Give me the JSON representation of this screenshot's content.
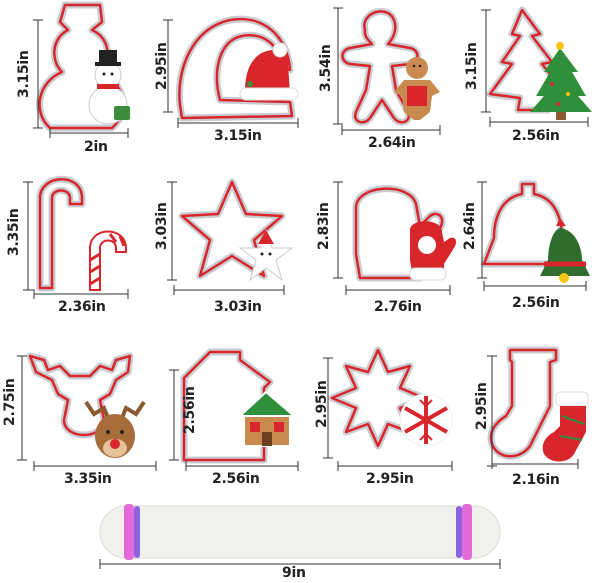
{
  "cutters": [
    {
      "id": "snowman",
      "height": "3.15in",
      "width": "2in",
      "icon": "snowman-cookie-icon"
    },
    {
      "id": "santa-hat",
      "height": "2.95in",
      "width": "3.15in",
      "icon": "santa-hat-cookie-icon"
    },
    {
      "id": "gingerbread-man",
      "height": "3.54in",
      "width": "2.64in",
      "icon": "gingerbread-man-cookie-icon"
    },
    {
      "id": "christmas-tree",
      "height": "3.15in",
      "width": "2.56in",
      "icon": "christmas-tree-cookie-icon"
    },
    {
      "id": "candy-cane",
      "height": "3.35in",
      "width": "2.36in",
      "icon": "candy-cane-cookie-icon"
    },
    {
      "id": "star",
      "height": "3.03in",
      "width": "3.03in",
      "icon": "star-cookie-icon"
    },
    {
      "id": "mitten",
      "height": "2.83in",
      "width": "2.76in",
      "icon": "mitten-cookie-icon"
    },
    {
      "id": "bell",
      "height": "2.64in",
      "width": "2.56in",
      "icon": "bell-cookie-icon"
    },
    {
      "id": "reindeer",
      "height": "2.75in",
      "width": "3.35in",
      "icon": "reindeer-cookie-icon"
    },
    {
      "id": "house",
      "height": "2.56in",
      "width": "2.56in",
      "icon": "gingerbread-house-cookie-icon"
    },
    {
      "id": "snowflake",
      "height": "2.95in",
      "width": "2.95in",
      "icon": "snowflake-cookie-icon"
    },
    {
      "id": "stocking",
      "height": "2.95in",
      "width": "2.16in",
      "icon": "stocking-cookie-icon"
    }
  ],
  "rolling_pin": {
    "length": "9in",
    "icon": "rolling-pin-icon"
  },
  "colors": {
    "cutter_red": "#d9262c",
    "cutter_steel": "#c9ccd1",
    "text": "#222222",
    "pin_body": "#f1f1ee",
    "ring_pink": "#e46ad9",
    "ring_purple": "#8a63e0"
  }
}
